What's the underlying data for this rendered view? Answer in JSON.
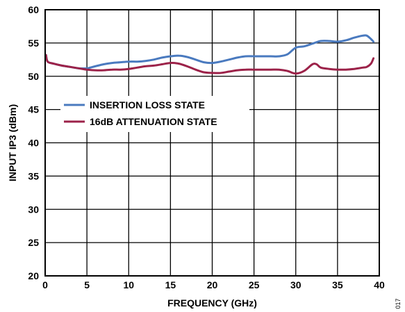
{
  "chart_data": {
    "type": "line",
    "xlabel": "FREQUENCY (GHz)",
    "ylabel": "INPUT IP3 (dBm)",
    "xlim": [
      0,
      40
    ],
    "ylim": [
      20,
      60
    ],
    "xticks": [
      0,
      5,
      10,
      15,
      20,
      25,
      30,
      35,
      40
    ],
    "yticks": [
      20,
      25,
      30,
      35,
      40,
      45,
      50,
      55,
      60
    ],
    "grid": true,
    "legend_position": "upper-left",
    "series": [
      {
        "name": "INSERTION LOSS STATE",
        "color": "#4a7abf",
        "x": [
          0.1,
          0.3,
          1,
          2,
          3,
          4,
          5,
          6,
          7,
          8,
          9,
          10,
          11,
          12,
          13,
          14,
          15,
          16,
          17,
          18,
          19,
          20,
          21,
          22,
          23,
          24,
          25,
          26,
          27,
          28,
          29,
          30,
          31,
          32,
          33,
          34,
          35,
          36,
          37,
          38,
          38.5,
          39,
          39.3
        ],
        "y": [
          53.2,
          52.2,
          51.9,
          51.6,
          51.4,
          51.2,
          51.2,
          51.5,
          51.8,
          52.0,
          52.1,
          52.2,
          52.2,
          52.3,
          52.5,
          52.8,
          53.0,
          53.1,
          52.9,
          52.5,
          52.1,
          52.0,
          52.2,
          52.5,
          52.8,
          53.0,
          53.0,
          53.0,
          53.0,
          53.0,
          53.3,
          54.3,
          54.5,
          54.9,
          55.3,
          55.3,
          55.2,
          55.4,
          55.8,
          56.1,
          56.1,
          55.6,
          55.2
        ]
      },
      {
        "name": "16dB ATTENUATION STATE",
        "color": "#9c2249",
        "x": [
          0.1,
          0.3,
          1,
          2,
          3,
          4,
          5,
          6,
          7,
          8,
          9,
          10,
          11,
          12,
          13,
          14,
          15,
          16,
          17,
          18,
          19,
          20,
          21,
          22,
          23,
          24,
          25,
          26,
          27,
          28,
          29,
          30,
          31,
          32,
          32.5,
          33,
          34,
          35,
          36,
          37,
          38,
          38.5,
          39,
          39.3
        ],
        "y": [
          53.2,
          52.2,
          51.9,
          51.6,
          51.4,
          51.2,
          51.0,
          50.9,
          50.9,
          51.0,
          51.0,
          51.1,
          51.3,
          51.5,
          51.6,
          51.8,
          52.0,
          51.9,
          51.5,
          51.0,
          50.6,
          50.5,
          50.5,
          50.7,
          50.9,
          51.0,
          51.0,
          51.0,
          51.0,
          51.0,
          50.8,
          50.4,
          50.8,
          51.8,
          51.8,
          51.3,
          51.1,
          51.0,
          51.0,
          51.1,
          51.3,
          51.4,
          51.9,
          52.7
        ]
      }
    ]
  },
  "figure_id": "017"
}
